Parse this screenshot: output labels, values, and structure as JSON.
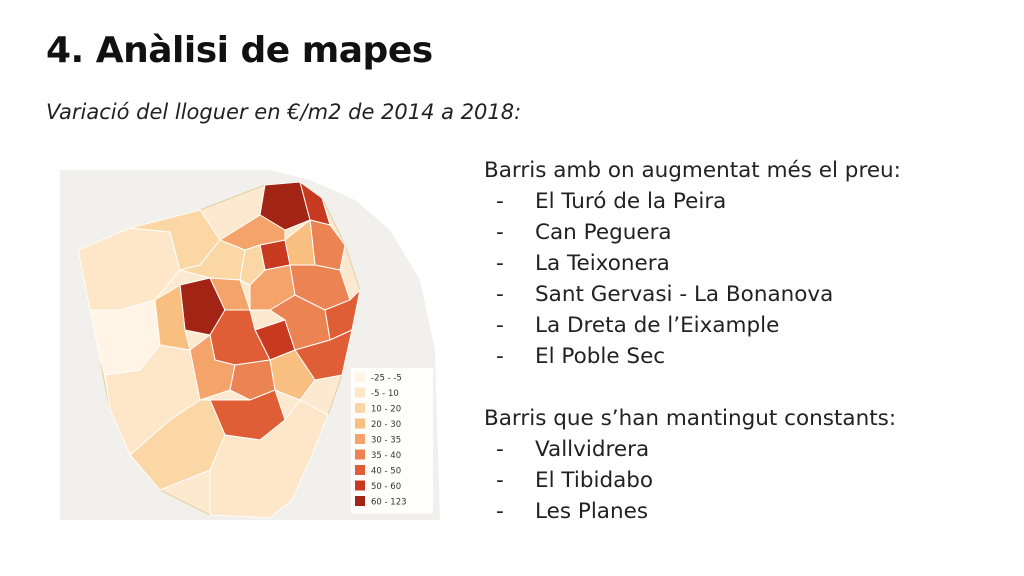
{
  "slide": {
    "title": "4. Anàlisi de mapes",
    "subtitle": "Variació del lloguer en €/m2 de 2014 a 2018:"
  },
  "legend": {
    "items": [
      {
        "label": "-25 - -5",
        "color": "#fff4e6"
      },
      {
        "label": "-5 - 10",
        "color": "#fde7c8"
      },
      {
        "label": "10 - 20",
        "color": "#fcd7a6"
      },
      {
        "label": "20 - 30",
        "color": "#f9bf80"
      },
      {
        "label": "30 - 35",
        "color": "#f4a46a"
      },
      {
        "label": "35 - 40",
        "color": "#ec8352"
      },
      {
        "label": "40 - 50",
        "color": "#df5e36"
      },
      {
        "label": "50 - 60",
        "color": "#c83a1f"
      },
      {
        "label": "60 - 123",
        "color": "#a12414"
      }
    ]
  },
  "increased": {
    "heading": "Barris amb on augmentat més el preu:",
    "items": [
      "El Turó de la Peira",
      "Can Peguera",
      "La Teixonera",
      "Sant Gervasi - La Bonanova",
      "La Dreta de l’Eixample",
      "El Poble Sec"
    ]
  },
  "constant": {
    "heading": "Barris que s’han mantingut constants:",
    "items": [
      "Vallvidrera",
      "El Tibidabo",
      "Les Planes"
    ]
  },
  "bullet": "-"
}
